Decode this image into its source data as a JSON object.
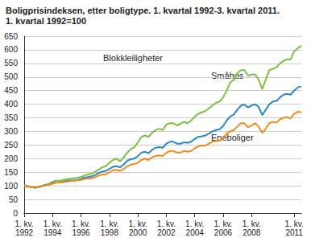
{
  "chart_data": {
    "type": "line",
    "title": "Boligprisindeksen, etter boligtype. 1. kvartal 1992-3. kvartal 2011.",
    "subtitle": "1. kvartal 1992=100",
    "categories": [
      "1. kv.\n1992",
      null,
      null,
      null,
      null,
      null,
      null,
      null,
      "1. kv.\n1994",
      null,
      null,
      null,
      null,
      null,
      null,
      null,
      "1. kv.\n1996",
      null,
      null,
      null,
      null,
      null,
      null,
      null,
      "1. kv.\n1998",
      null,
      null,
      null,
      null,
      null,
      null,
      null,
      "1. kv.\n2000",
      null,
      null,
      null,
      null,
      null,
      null,
      null,
      "1. kv.\n2002",
      null,
      null,
      null,
      null,
      null,
      null,
      null,
      "1. kv.\n2004",
      null,
      null,
      null,
      null,
      null,
      null,
      null,
      "1. kv.\n2006",
      null,
      null,
      null,
      null,
      null,
      null,
      null,
      "1. kv.\n2008",
      null,
      null,
      null,
      null,
      null,
      null,
      null,
      null,
      null,
      null,
      null,
      "1. kv.\n2011",
      null,
      null
    ],
    "series": [
      {
        "name": "Blokkleiligheter",
        "color": "#7dbf45",
        "values": [
          100,
          99,
          96,
          95,
          96,
          100,
          104,
          108,
          115,
          120,
          118,
          122,
          124,
          126,
          128,
          130,
          132,
          138,
          142,
          145,
          152,
          160,
          168,
          172,
          185,
          195,
          200,
          190,
          205,
          222,
          235,
          242,
          260,
          280,
          285,
          280,
          295,
          305,
          310,
          305,
          325,
          330,
          330,
          322,
          328,
          335,
          330,
          340,
          355,
          365,
          370,
          375,
          385,
          395,
          405,
          410,
          425,
          450,
          480,
          490,
          515,
          525,
          525,
          505,
          508,
          510,
          490,
          455,
          490,
          525,
          530,
          535,
          550,
          560,
          565,
          565,
          595,
          605,
          615
        ]
      },
      {
        "name": "Småhus",
        "color": "#2b86c6",
        "values": [
          100,
          98,
          95,
          93,
          95,
          100,
          103,
          105,
          110,
          113,
          112,
          115,
          118,
          120,
          120,
          122,
          125,
          130,
          132,
          135,
          140,
          148,
          152,
          155,
          162,
          170,
          172,
          168,
          178,
          192,
          198,
          200,
          210,
          222,
          225,
          220,
          232,
          240,
          242,
          240,
          255,
          262,
          262,
          255,
          255,
          260,
          258,
          262,
          272,
          280,
          282,
          285,
          292,
          300,
          305,
          308,
          320,
          340,
          355,
          362,
          380,
          395,
          398,
          388,
          395,
          400,
          390,
          360,
          380,
          400,
          410,
          412,
          425,
          435,
          438,
          435,
          450,
          462,
          465
        ]
      },
      {
        "name": "Eneboliger",
        "color": "#f08a1d",
        "values": [
          100,
          98,
          95,
          94,
          95,
          98,
          102,
          105,
          108,
          112,
          112,
          114,
          115,
          118,
          118,
          120,
          122,
          125,
          127,
          128,
          132,
          138,
          142,
          142,
          150,
          158,
          158,
          155,
          162,
          172,
          178,
          180,
          185,
          195,
          200,
          195,
          205,
          210,
          212,
          210,
          222,
          228,
          228,
          222,
          222,
          228,
          225,
          228,
          238,
          245,
          248,
          248,
          255,
          262,
          265,
          265,
          275,
          292,
          300,
          305,
          318,
          330,
          330,
          315,
          322,
          330,
          318,
          295,
          310,
          330,
          335,
          332,
          345,
          350,
          352,
          348,
          365,
          372,
          370
        ]
      }
    ],
    "ylim": [
      0,
      650
    ],
    "yticks": [
      0,
      50,
      100,
      150,
      200,
      250,
      300,
      350,
      400,
      450,
      500,
      550,
      600,
      650
    ],
    "grid": true
  }
}
